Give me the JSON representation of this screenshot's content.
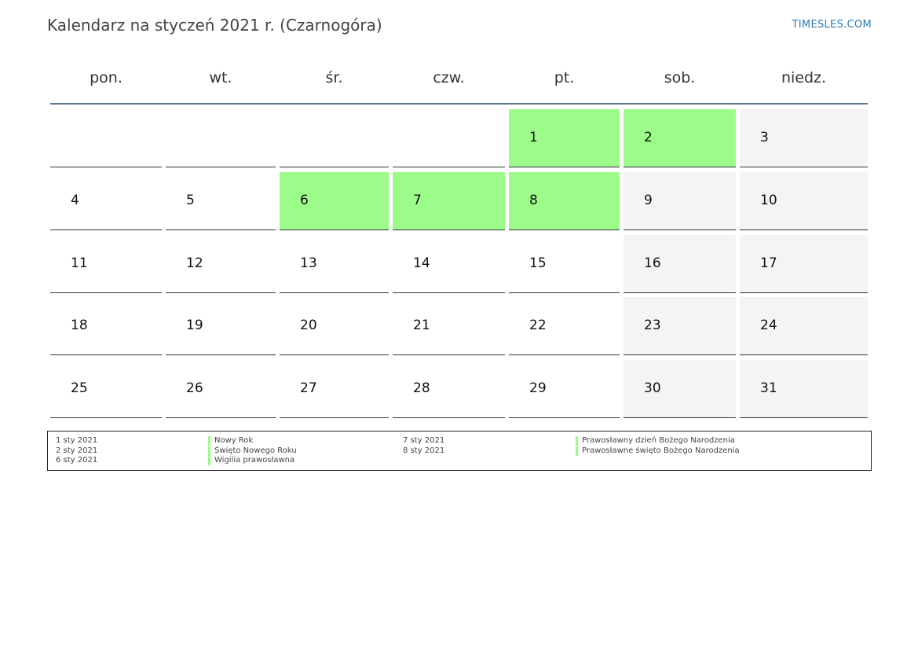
{
  "header": {
    "title": "Kalendarz na styczeń 2021 r. (Czarnogóra)",
    "brand": "TIMESLES.COM"
  },
  "weekdays": [
    "pon.",
    "wt.",
    "śr.",
    "czw.",
    "pt.",
    "sob.",
    "niedz."
  ],
  "colors": {
    "holiday": "#9cfc89",
    "weekend": "#f4f4f4",
    "header_rule": "#5b7394",
    "brand": "#2a7ab8"
  },
  "weeks": [
    [
      null,
      null,
      null,
      null,
      {
        "day": "1",
        "type": "holiday"
      },
      {
        "day": "2",
        "type": "holiday"
      },
      {
        "day": "3",
        "type": "weekend"
      }
    ],
    [
      {
        "day": "4"
      },
      {
        "day": "5"
      },
      {
        "day": "6",
        "type": "holiday"
      },
      {
        "day": "7",
        "type": "holiday"
      },
      {
        "day": "8",
        "type": "holiday"
      },
      {
        "day": "9",
        "type": "weekend"
      },
      {
        "day": "10",
        "type": "weekend"
      }
    ],
    [
      {
        "day": "11"
      },
      {
        "day": "12"
      },
      {
        "day": "13"
      },
      {
        "day": "14"
      },
      {
        "day": "15"
      },
      {
        "day": "16",
        "type": "weekend"
      },
      {
        "day": "17",
        "type": "weekend"
      }
    ],
    [
      {
        "day": "18"
      },
      {
        "day": "19"
      },
      {
        "day": "20"
      },
      {
        "day": "21"
      },
      {
        "day": "22"
      },
      {
        "day": "23",
        "type": "weekend"
      },
      {
        "day": "24",
        "type": "weekend"
      }
    ],
    [
      {
        "day": "25"
      },
      {
        "day": "26"
      },
      {
        "day": "27"
      },
      {
        "day": "28"
      },
      {
        "day": "29"
      },
      {
        "day": "30",
        "type": "weekend"
      },
      {
        "day": "31",
        "type": "weekend"
      }
    ]
  ],
  "holidays": [
    {
      "date": "1 sty 2021",
      "name": "Nowy Rok"
    },
    {
      "date": "2 sty 2021",
      "name": "Święto Nowego Roku"
    },
    {
      "date": "6 sty 2021",
      "name": "Wigilia prawosławna"
    },
    {
      "date": "7 sty 2021",
      "name": "Prawosławny dzień Bożego Narodzenia"
    },
    {
      "date": "8 sty 2021",
      "name": "Prawosławne święto Bożego Narodzenia"
    }
  ]
}
